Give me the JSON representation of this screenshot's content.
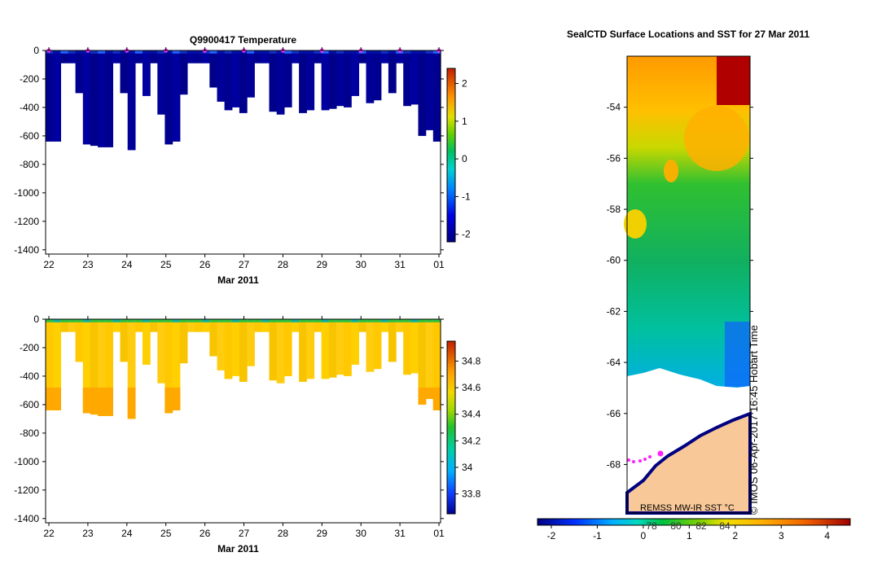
{
  "chart_data": [
    {
      "type": "heatmap",
      "title": "Q9900417  Temperature",
      "xlabel": "Mar 2011",
      "x_ticks": [
        "22",
        "23",
        "24",
        "25",
        "26",
        "27",
        "28",
        "29",
        "30",
        "31",
        "01"
      ],
      "y_ticks": [
        "0",
        "-200",
        "-400",
        "-600",
        "-800",
        "-1000",
        "-1200",
        "-1400"
      ],
      "ylim": [
        -1430,
        0
      ],
      "colorbar_ticks": [
        "2",
        "1",
        "0",
        "-1",
        "-2"
      ],
      "colorbar_range": [
        -2.2,
        2.4
      ],
      "profile_max_depth": [
        640,
        640,
        90,
        90,
        300,
        660,
        670,
        680,
        680,
        90,
        300,
        700,
        90,
        320,
        90,
        450,
        660,
        640,
        310,
        90,
        90,
        90,
        260,
        360,
        420,
        400,
        440,
        330,
        90,
        90,
        430,
        450,
        400,
        90,
        440,
        420,
        90,
        420,
        410,
        390,
        400,
        320,
        90,
        370,
        350,
        90,
        300,
        90,
        390,
        380,
        600,
        560,
        640
      ],
      "surface_locations_marked": true
    },
    {
      "type": "heatmap",
      "title": "",
      "xlabel": "Mar 2011",
      "x_ticks": [
        "22",
        "23",
        "24",
        "25",
        "26",
        "27",
        "28",
        "29",
        "30",
        "31",
        "01"
      ],
      "y_ticks": [
        "0",
        "-200",
        "-400",
        "-600",
        "-800",
        "-1000",
        "-1200",
        "-1400"
      ],
      "ylim": [
        -1430,
        0
      ],
      "colorbar_ticks": [
        "34.8",
        "34.6",
        "34.4",
        "34.2",
        "34",
        "33.8"
      ],
      "colorbar_range": [
        33.65,
        34.95
      ]
    },
    {
      "type": "heatmap",
      "title": "SealCTD Surface Locations and SST for 27 Mar 2011",
      "y_ticks": [
        "-54",
        "-56",
        "-58",
        "-60",
        "-62",
        "-64",
        "-66",
        "-68"
      ],
      "ylim": [
        -69.9,
        -52.0
      ],
      "colorbar_ticks": [
        "-2",
        "-1",
        "0",
        "1",
        "2",
        "3",
        "4"
      ],
      "colorbar_range": [
        -2.3,
        4.5
      ],
      "colorbar_overlay_labels": [
        "78",
        "80",
        "82",
        "84"
      ],
      "source_label": "REMSS MW-IR SST °C",
      "timestamp": "© IMOS 06-Apr-2017 16:45 Hobart Time"
    }
  ]
}
